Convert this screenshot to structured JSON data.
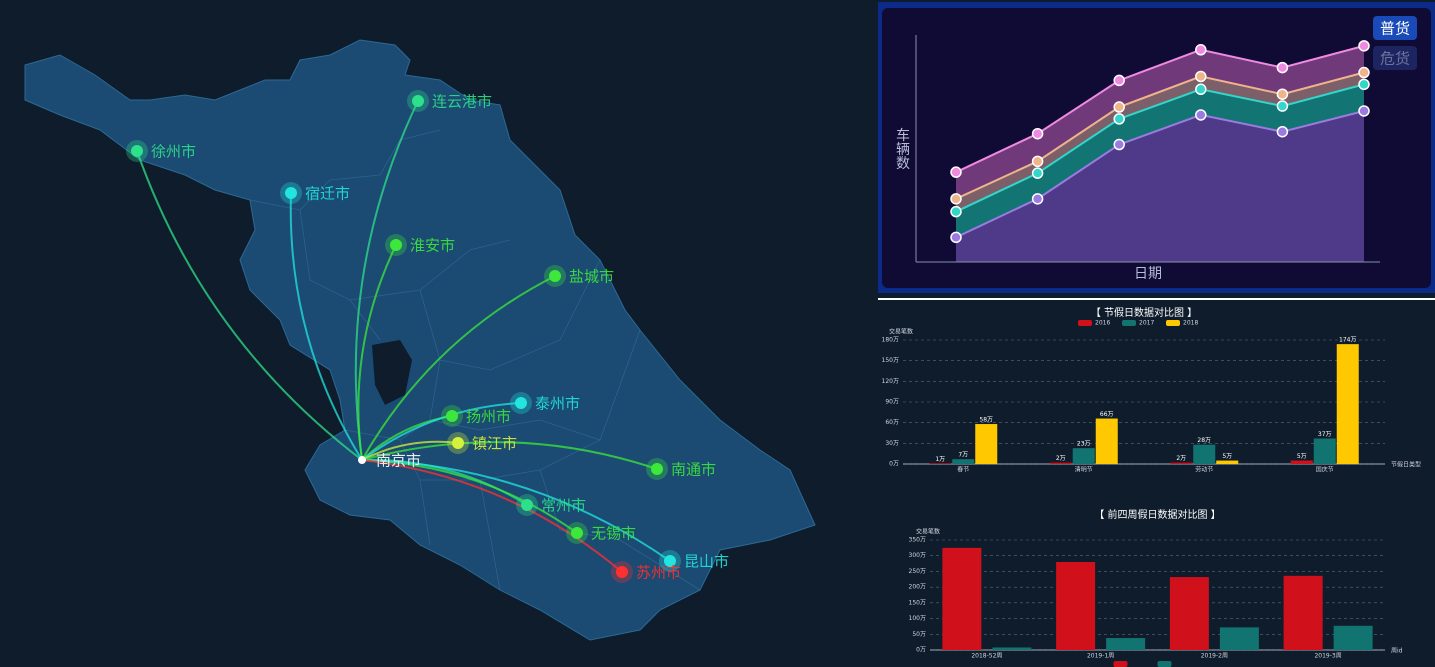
{
  "map": {
    "cities": [
      {
        "name": "徐州市",
        "color": "#2de08a"
      },
      {
        "name": "连云港市",
        "color": "#2de08a"
      },
      {
        "name": "宿迁市",
        "color": "#22e5e0"
      },
      {
        "name": "淮安市",
        "color": "#3ce83c"
      },
      {
        "name": "盐城市",
        "color": "#3ce83c"
      },
      {
        "name": "扬州市",
        "color": "#3ce83c"
      },
      {
        "name": "泰州市",
        "color": "#22e5e0"
      },
      {
        "name": "镇江市",
        "color": "#d4f23b"
      },
      {
        "name": "南京市",
        "color": "#ffffff"
      },
      {
        "name": "南通市",
        "color": "#3ce83c"
      },
      {
        "name": "常州市",
        "color": "#2de08a"
      },
      {
        "name": "无锡市",
        "color": "#3ce83c"
      },
      {
        "name": "昆山市",
        "color": "#22e5e0"
      },
      {
        "name": "苏州市",
        "color": "#ff3030"
      }
    ],
    "hub": 8
  },
  "chart_data": [
    {
      "type": "area",
      "stacked": true,
      "xlabel": "日期",
      "ylabel": "车辆数",
      "ylim": [
        0,
        230
      ],
      "legend": [
        {
          "name": "普货",
          "active": true
        },
        {
          "name": "危货",
          "active": false
        }
      ],
      "series": [
        {
          "color": "#9b7be0",
          "fill": "#4f3a8a",
          "values": [
            25,
            64,
            119,
            149,
            132,
            153
          ]
        },
        {
          "color": "#33d6c9",
          "fill": "#137474",
          "values": [
            26,
            26,
            26,
            26,
            26,
            27
          ]
        },
        {
          "color": "#f0b48a",
          "fill": "#7d5f6a",
          "values": [
            13,
            12,
            12,
            13,
            12,
            12
          ]
        },
        {
          "color": "#f08ae0",
          "fill": "#703a7a",
          "values": [
            27,
            28,
            27,
            27,
            27,
            27
          ]
        }
      ]
    },
    {
      "type": "bar",
      "title": "【 节假日数据对比图 】",
      "ylabel": "交易笔数",
      "xlabel": "节假日类型",
      "categories": [
        "春节",
        "清明节",
        "劳动节",
        "国庆节"
      ],
      "ylim": [
        0,
        180
      ],
      "grid": true,
      "yticks": [
        {
          "value": 0,
          "label": "0万"
        },
        {
          "value": 30,
          "label": "30万"
        },
        {
          "value": 60,
          "label": "60万"
        },
        {
          "value": 90,
          "label": "90万"
        },
        {
          "value": 120,
          "label": "120万"
        },
        {
          "value": 150,
          "label": "150万"
        },
        {
          "value": 180,
          "label": "180万"
        }
      ],
      "series": [
        {
          "name": "2016",
          "color": "#d0111b",
          "values": [
            1,
            2,
            2,
            5
          ],
          "value_labels": [
            "1万",
            "2万",
            "2万",
            "5万"
          ]
        },
        {
          "name": "2017",
          "color": "#127470",
          "values": [
            7,
            23,
            28,
            37
          ],
          "value_labels": [
            "7万",
            "23万",
            "28万",
            "37万"
          ]
        },
        {
          "name": "2018",
          "color": "#ffc800",
          "values": [
            58,
            66,
            5,
            174
          ],
          "value_labels": [
            "58万",
            "66万",
            "5万",
            "174万"
          ]
        }
      ]
    },
    {
      "type": "bar",
      "title": "【 前四周假日数据对比图 】",
      "ylabel": "交易笔数",
      "xlabel": "周id",
      "categories": [
        "2018-52周",
        "2019-1周",
        "2019-2周",
        "2019-3周"
      ],
      "ylim": [
        0,
        350
      ],
      "grid": true,
      "yticks": [
        {
          "value": 0,
          "label": "0万"
        },
        {
          "value": 50,
          "label": "50万"
        },
        {
          "value": 100,
          "label": "100万"
        },
        {
          "value": 150,
          "label": "150万"
        },
        {
          "value": 200,
          "label": "200万"
        },
        {
          "value": 250,
          "label": "250万"
        },
        {
          "value": 300,
          "label": "300万"
        },
        {
          "value": 350,
          "label": "350万"
        }
      ],
      "series": [
        {
          "color": "#d0111b",
          "values": [
            325,
            280,
            232,
            236
          ]
        },
        {
          "color": "#127470",
          "values": [
            8,
            38,
            72,
            77
          ]
        }
      ]
    }
  ]
}
